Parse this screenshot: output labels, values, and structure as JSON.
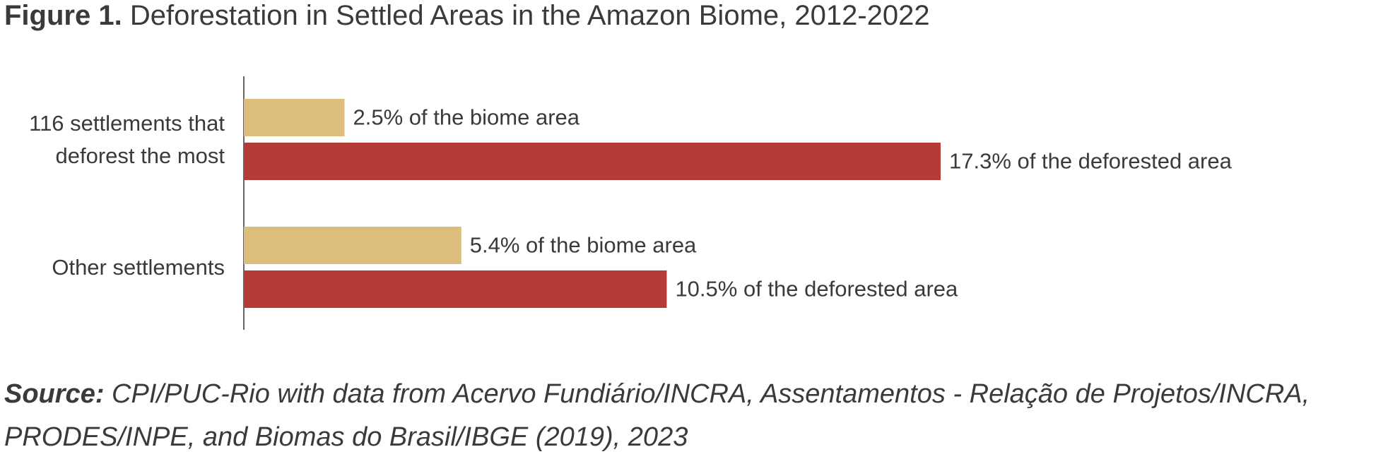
{
  "chart_data": {
    "type": "bar",
    "orientation": "horizontal",
    "figure_label": "Figure 1.",
    "title": "Deforestation in Settled Areas in the Amazon Biome, 2012-2022",
    "categories": [
      "116 settlements that deforest the most",
      "Other settlements"
    ],
    "series": [
      {
        "color": "#dcbd7b",
        "values": [
          2.5,
          5.4
        ],
        "value_labels": [
          "2.5% of the biome area",
          "5.4% of the biome area"
        ]
      },
      {
        "color": "#b53b36",
        "values": [
          17.3,
          10.5
        ],
        "value_labels": [
          "17.3% of the deforested area",
          "10.5% of the deforested area"
        ]
      }
    ],
    "source_label": "Source:",
    "source": "CPI/PUC-Rio with data from Acervo Fundiário/INCRA, Assentamentos - Relação de Projetos/INCRA, PRODES/INPE, and Biomas do Brasil/IBGE (2019), 2023"
  }
}
